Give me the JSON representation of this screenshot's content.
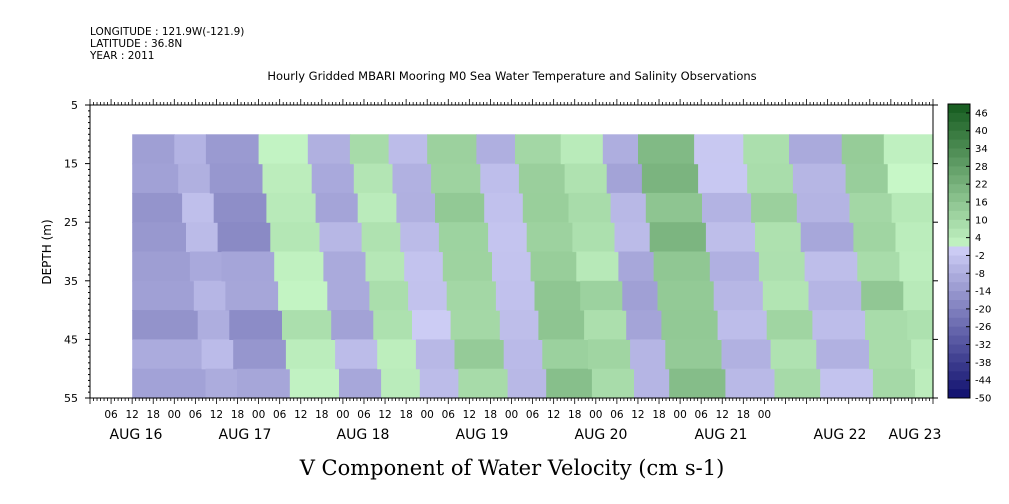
{
  "header": {
    "longitude": "LONGITUDE : 121.9W(-121.9)",
    "latitude": "LATITUDE : 36.8N",
    "year": "YEAR : 2011"
  },
  "chart_data": {
    "type": "heatmap",
    "title": "Hourly Gridded MBARI Mooring M0 Sea Water Temperature and Salinity Observations",
    "xlabel": "V Component of Water Velocity (cm s-1)",
    "ylabel": "DEPTH (m)",
    "y_ticks": [
      "5",
      "15",
      "25",
      "35",
      "45",
      "55"
    ],
    "y_range": [
      5,
      55
    ],
    "x_hour_ticks": [
      "06",
      "12",
      "18",
      "00",
      "06",
      "12",
      "18",
      "00",
      "06",
      "12",
      "18",
      "00",
      "06",
      "12",
      "18",
      "00",
      "06",
      "12",
      "18",
      "00",
      "06",
      "12",
      "18",
      "00",
      "06",
      "12",
      "18",
      "00",
      "06",
      "12",
      "18",
      "00"
    ],
    "x_date_labels": [
      "AUG 16",
      "AUG 17",
      "AUG 18",
      "AUG 19",
      "AUG 20",
      "AUG 21",
      "AUG 22",
      "AUG 23"
    ],
    "colorbar": {
      "labels": [
        "46",
        "40",
        "34",
        "28",
        "22",
        "16",
        "10",
        "4",
        "-2",
        "-8",
        "-14",
        "-20",
        "-26",
        "-32",
        "-38",
        "-44",
        "-50"
      ],
      "min": -50,
      "max": 49
    },
    "data_depth_range": [
      10,
      55
    ],
    "bands": [
      {
        "start_hour": 12,
        "end_hour": 24,
        "v": -12
      },
      {
        "start_hour": 24,
        "end_hour": 33,
        "v": -6
      },
      {
        "start_hour": 33,
        "end_hour": 48,
        "v": -14
      },
      {
        "start_hour": 48,
        "end_hour": 62,
        "v": 4
      },
      {
        "start_hour": 62,
        "end_hour": 74,
        "v": -8
      },
      {
        "start_hour": 74,
        "end_hour": 85,
        "v": 6
      },
      {
        "start_hour": 85,
        "end_hour": 96,
        "v": -4
      },
      {
        "start_hour": 96,
        "end_hour": 110,
        "v": 12
      },
      {
        "start_hour": 110,
        "end_hour": 121,
        "v": -6
      },
      {
        "start_hour": 121,
        "end_hour": 134,
        "v": 14
      },
      {
        "start_hour": 134,
        "end_hour": 146,
        "v": 8
      },
      {
        "start_hour": 146,
        "end_hour": 156,
        "v": -8
      },
      {
        "start_hour": 156,
        "end_hour": 172,
        "v": 18
      },
      {
        "start_hour": 172,
        "end_hour": 186,
        "v": -4
      },
      {
        "start_hour": 186,
        "end_hour": 199,
        "v": 10
      },
      {
        "start_hour": 199,
        "end_hour": 214,
        "v": -6
      },
      {
        "start_hour": 214,
        "end_hour": 226,
        "v": 12
      },
      {
        "start_hour": 226,
        "end_hour": 240,
        "v": 4
      }
    ]
  }
}
